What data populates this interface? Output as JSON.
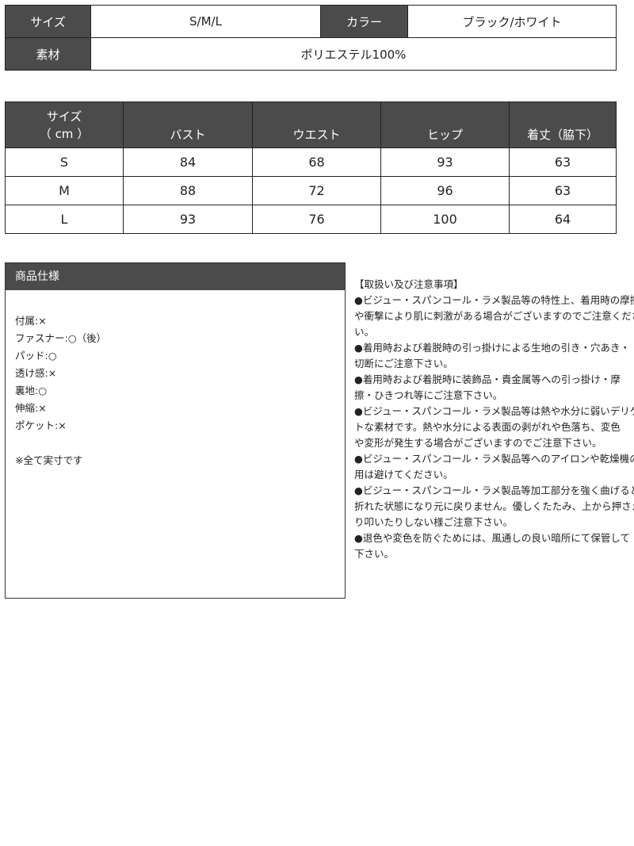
{
  "basic_info": {
    "size_label": "サイズ",
    "size_value": "S/M/L",
    "color_label": "カラー",
    "color_value": "ブラック/ホワイト",
    "material_label": "素材",
    "material_value": "ポリエステル100%"
  },
  "size_table": {
    "headers": [
      "サイズ",
      "（ cm ）",
      "バスト",
      "ウエスト",
      "ヒップ",
      "着丈（脇下）"
    ],
    "rows": [
      [
        "S",
        "84",
        "68",
        "93",
        "63"
      ],
      [
        "M",
        "88",
        "72",
        "96",
        "63"
      ],
      [
        "L",
        "93",
        "76",
        "100",
        "64"
      ]
    ]
  },
  "spec": {
    "title": "商品仕様",
    "items": [
      "付属:×",
      "ファスナー:○（後）",
      "パッド:○",
      "透け感:×",
      "裏地:○",
      "伸縮:×",
      "ポケット:×"
    ],
    "note": "※全て実寸です"
  },
  "notes": {
    "lines": [
      "【取扱い及び注意事項】",
      "●ビジュー・スパンコール・ラメ製品等の特性上、着用時の摩擦",
      "や衝撃により肌に刺激がある場合がございますのでご注意くださ",
      "い。",
      "●着用時および着脱時の引っ掛けによる生地の引き・穴あき・",
      "切断にご注意下さい。",
      "●着用時および着脱時に装飾品・貴金属等への引っ掛け・摩",
      "擦・ひきつれ等にご注意下さい。",
      "●ビジュー・スパンコール・ラメ製品等は熱や水分に弱いデリケー",
      "トな素材です。熱や水分による表面の剥がれや色落ち、変色",
      "や変形が発生する場合がございますのでご注意下さい。",
      "●ビジュー・スパンコール・ラメ製品等へのアイロンや乾燥機の使",
      "用は避けてください。",
      "●ビジュー・スパンコール・ラメ製品等加工部分を強く曲げると",
      "折れた状態になり元に戻りません。優しくたたみ、上から押さえた",
      "り叩いたりしない様ご注意下さい。",
      "●退色や変色を防ぐためには、風通しの良い暗所にて保管して",
      "下さい。"
    ]
  }
}
